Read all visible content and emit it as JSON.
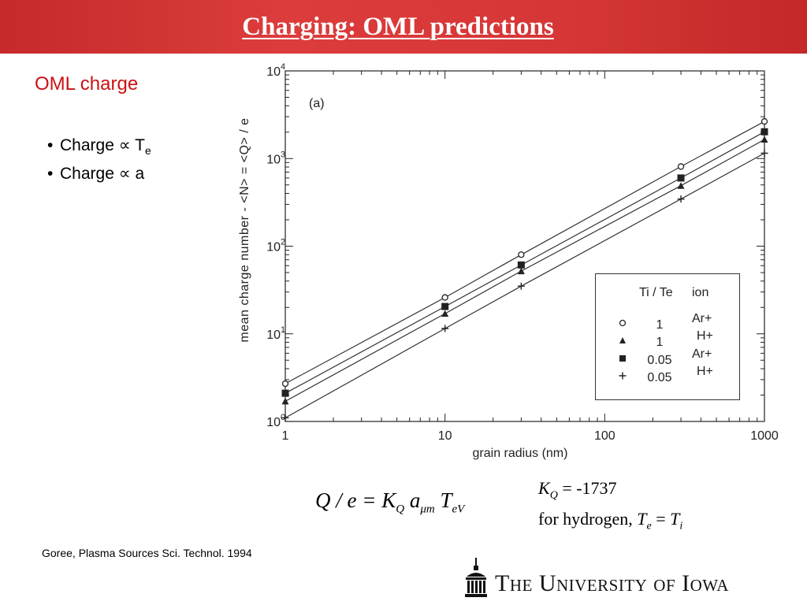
{
  "slide": {
    "title": "Charging: OML predictions",
    "section_heading": "OML charge",
    "bullets": [
      {
        "text": "Charge ∝ T",
        "sub": "e"
      },
      {
        "text": "Charge ∝ a",
        "sub": ""
      }
    ],
    "citation": "Goree, Plasma Sources Sci. Technol. 1994",
    "logo_text": "The University of Iowa",
    "colors": {
      "banner": "#d63636",
      "heading": "#cc1111",
      "title_text": "#ffffff"
    }
  },
  "equation": {
    "q": "Q / e = K",
    "kq_sub": "Q",
    "a": " a",
    "a_sub": "μm",
    "t": " T",
    "t_sub": "eV"
  },
  "note": {
    "kq": "K",
    "kq_sub": "Q",
    "kq_value": " = -1737",
    "line2_prefix": "for hydrogen, ",
    "te": "T",
    "te_sub": "e",
    "eq": " = ",
    "ti": "T",
    "ti_sub": "i"
  },
  "chart_data": {
    "type": "line",
    "panel_label": "(a)",
    "xlabel": "grain radius (nm)",
    "ylabel": "mean charge number   - <N> = <Q> / e",
    "xscale": "log",
    "yscale": "log",
    "xlim": [
      1,
      1000
    ],
    "ylim": [
      1,
      10000
    ],
    "x_ticks": [
      "1",
      "10",
      "100",
      "1000"
    ],
    "y_ticks": [
      {
        "base": "10",
        "exp": "0"
      },
      {
        "base": "10",
        "exp": "1"
      },
      {
        "base": "10",
        "exp": "2"
      },
      {
        "base": "10",
        "exp": "3"
      },
      {
        "base": "10",
        "exp": "4"
      }
    ],
    "legend_header": {
      "ratio": "Ti / Te",
      "ion": "ion"
    },
    "legend_placement": "lower-right",
    "series": [
      {
        "ratio": "1",
        "ion": "Ar+",
        "marker": "circle",
        "x": [
          1,
          10,
          30,
          300,
          1000
        ],
        "y": [
          2.7,
          26,
          80,
          810,
          2650
        ]
      },
      {
        "ratio": "1",
        "ion": "H+",
        "marker": "triangle",
        "x": [
          1,
          10,
          30,
          300,
          1000
        ],
        "y": [
          1.7,
          17,
          52,
          490,
          1650
        ]
      },
      {
        "ratio": "0.05",
        "ion": "Ar+",
        "marker": "square",
        "x": [
          1,
          10,
          30,
          300,
          1000
        ],
        "y": [
          2.1,
          20.5,
          61,
          600,
          2020
        ]
      },
      {
        "ratio": "0.05",
        "ion": "H+",
        "marker": "plus",
        "x": [
          1,
          10,
          30,
          300,
          1000
        ],
        "y": [
          1.1,
          11.5,
          35,
          345,
          1150
        ]
      }
    ]
  }
}
